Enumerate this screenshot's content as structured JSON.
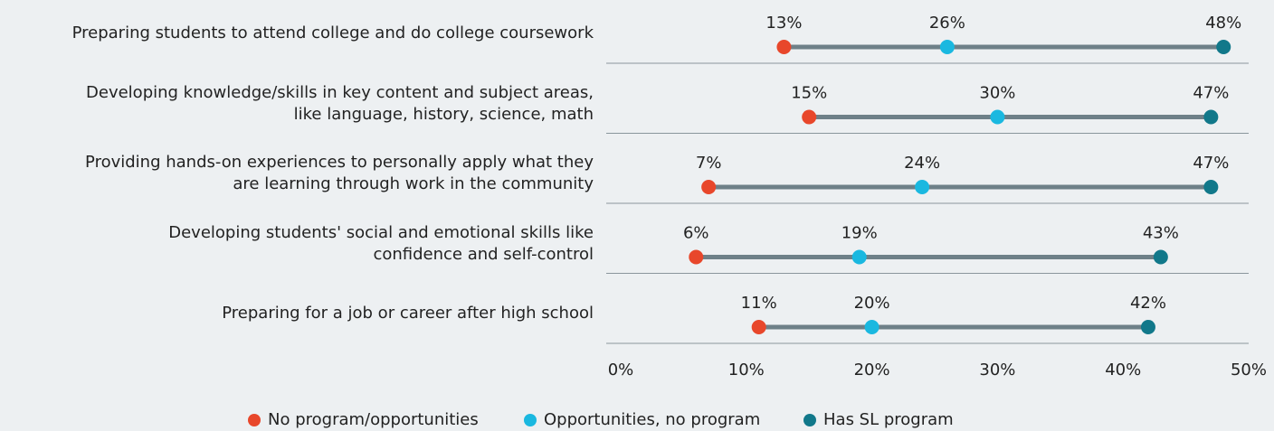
{
  "chart_data": {
    "type": "dumbbell",
    "categories": [
      "Preparing students to attend college and do college coursework",
      "Developing knowledge/skills in key content and subject areas,\nlike language, history, science, math",
      "Providing hands-on experiences to personally apply what they\nare learning through work in the community",
      "Developing students' social and emotional skills like\nconfidence and self-control",
      "Preparing for a job or career after high school"
    ],
    "series": [
      {
        "name": "No program/opportunities",
        "color": "#e8472b",
        "values": [
          13,
          15,
          7,
          6,
          11
        ],
        "value_labels": [
          "13%",
          "15%",
          "7%",
          "6%",
          "11%"
        ]
      },
      {
        "name": "Opportunities, no program",
        "color": "#1ab8e0",
        "values": [
          26,
          30,
          24,
          19,
          20
        ],
        "value_labels": [
          "26%",
          "30%",
          "24%",
          "19%",
          "20%"
        ]
      },
      {
        "name": "Has SL program",
        "color": "#11788a",
        "values": [
          48,
          47,
          47,
          43,
          42
        ],
        "value_labels": [
          "48%",
          "47%",
          "47%",
          "43%",
          "42%"
        ]
      }
    ],
    "line_color": "#6e8088",
    "xlim": [
      0,
      50
    ],
    "xticks": [
      {
        "value": 0,
        "label": "0%"
      },
      {
        "value": 10,
        "label": "10%"
      },
      {
        "value": 20,
        "label": "20%"
      },
      {
        "value": 30,
        "label": "30%"
      },
      {
        "value": 40,
        "label": "40%"
      },
      {
        "value": 50,
        "label": "50%"
      }
    ],
    "legend": "bottom"
  }
}
